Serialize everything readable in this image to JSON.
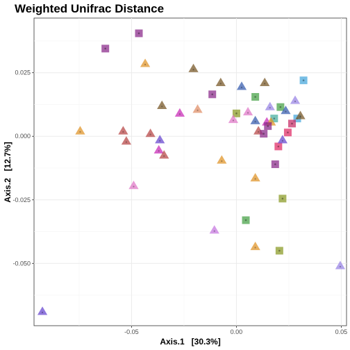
{
  "chart_data": {
    "type": "scatter",
    "title": "Weighted Unifrac Distance",
    "xlabel": "Axis.1   [30.3%]",
    "ylabel": "Axis.2   [12.7%]",
    "xlim": [
      -0.0965,
      0.0525
    ],
    "ylim": [
      -0.0745,
      0.0465
    ],
    "x_ticks": [
      -0.05,
      0.0,
      0.05
    ],
    "x_tick_labels": [
      "-0.05",
      "0.00",
      "0.05"
    ],
    "y_ticks": [
      -0.05,
      -0.025,
      0.0,
      0.025
    ],
    "y_tick_labels": [
      "-0.050",
      "-0.025",
      "0.000",
      "0.025"
    ],
    "grid": true,
    "legend": "none",
    "marker_shapes": [
      "triangle",
      "square"
    ],
    "points": [
      {
        "x": -0.0625,
        "y": 0.0345,
        "shape": "square",
        "color": "#8c2d8c"
      },
      {
        "x": -0.0465,
        "y": 0.0405,
        "shape": "square",
        "color": "#8c2d8c"
      },
      {
        "x": -0.0435,
        "y": 0.0285,
        "shape": "triangle",
        "color": "#e0952b"
      },
      {
        "x": -0.0205,
        "y": 0.0265,
        "shape": "triangle",
        "color": "#7a5a2a"
      },
      {
        "x": -0.0075,
        "y": 0.021,
        "shape": "triangle",
        "color": "#7a5a2a"
      },
      {
        "x": -0.0115,
        "y": 0.0165,
        "shape": "square",
        "color": "#8c2d8c"
      },
      {
        "x": 0.0025,
        "y": 0.0195,
        "shape": "triangle",
        "color": "#3a5fb0"
      },
      {
        "x": 0.009,
        "y": 0.0155,
        "shape": "square",
        "color": "#4aa34a"
      },
      {
        "x": 0.0135,
        "y": 0.021,
        "shape": "triangle",
        "color": "#7a5a2a"
      },
      {
        "x": 0.032,
        "y": 0.022,
        "shape": "square",
        "color": "#4aa8dc"
      },
      {
        "x": -0.0355,
        "y": 0.012,
        "shape": "triangle",
        "color": "#7a5a2a"
      },
      {
        "x": -0.0185,
        "y": 0.0105,
        "shape": "triangle",
        "color": "#e0906a"
      },
      {
        "x": -0.027,
        "y": 0.009,
        "shape": "triangle",
        "color": "#c92fb8"
      },
      {
        "x": 0.0,
        "y": 0.009,
        "shape": "square",
        "color": "#8c9c2a"
      },
      {
        "x": 0.0055,
        "y": 0.0095,
        "shape": "triangle",
        "color": "#e07ac8"
      },
      {
        "x": 0.016,
        "y": 0.0115,
        "shape": "triangle",
        "color": "#9a86e6"
      },
      {
        "x": 0.021,
        "y": 0.0115,
        "shape": "square",
        "color": "#4aa34a"
      },
      {
        "x": 0.028,
        "y": 0.014,
        "shape": "triangle",
        "color": "#9a86e6"
      },
      {
        "x": 0.0235,
        "y": 0.01,
        "shape": "triangle",
        "color": "#3a5fb0"
      },
      {
        "x": -0.0015,
        "y": 0.0065,
        "shape": "triangle",
        "color": "#e07ac8"
      },
      {
        "x": 0.009,
        "y": 0.006,
        "shape": "triangle",
        "color": "#3a5fb0"
      },
      {
        "x": 0.0145,
        "y": 0.0055,
        "shape": "triangle",
        "color": "#c92fb8"
      },
      {
        "x": 0.018,
        "y": 0.007,
        "shape": "square",
        "color": "#4ab0a0"
      },
      {
        "x": 0.0165,
        "y": 0.0055,
        "shape": "triangle",
        "color": "#e0952b"
      },
      {
        "x": 0.029,
        "y": 0.007,
        "shape": "square",
        "color": "#4aa8dc"
      },
      {
        "x": 0.0305,
        "y": 0.008,
        "shape": "triangle",
        "color": "#7a5a2a"
      },
      {
        "x": 0.0265,
        "y": 0.005,
        "shape": "square",
        "color": "#c8306a"
      },
      {
        "x": 0.015,
        "y": 0.004,
        "shape": "square",
        "color": "#8c2d8c"
      },
      {
        "x": 0.0105,
        "y": 0.002,
        "shape": "triangle",
        "color": "#b84a4a"
      },
      {
        "x": 0.013,
        "y": 0.001,
        "shape": "square",
        "color": "#8c2d8c"
      },
      {
        "x": 0.0245,
        "y": 0.0015,
        "shape": "square",
        "color": "#e0306a"
      },
      {
        "x": -0.0745,
        "y": 0.002,
        "shape": "triangle",
        "color": "#e0952b"
      },
      {
        "x": -0.054,
        "y": 0.002,
        "shape": "triangle",
        "color": "#b84a4a"
      },
      {
        "x": -0.041,
        "y": 0.001,
        "shape": "triangle",
        "color": "#b84a4a"
      },
      {
        "x": -0.0525,
        "y": -0.002,
        "shape": "triangle",
        "color": "#b84a4a"
      },
      {
        "x": -0.0365,
        "y": -0.0015,
        "shape": "triangle",
        "color": "#6a4ad0"
      },
      {
        "x": -0.037,
        "y": -0.0055,
        "shape": "triangle",
        "color": "#c92fb8"
      },
      {
        "x": -0.0345,
        "y": -0.0075,
        "shape": "triangle",
        "color": "#b84a4a"
      },
      {
        "x": 0.02,
        "y": -0.004,
        "shape": "square",
        "color": "#e0306a"
      },
      {
        "x": 0.022,
        "y": -0.0015,
        "shape": "triangle",
        "color": "#6a4ad0"
      },
      {
        "x": -0.007,
        "y": -0.0095,
        "shape": "triangle",
        "color": "#e0952b"
      },
      {
        "x": 0.0185,
        "y": -0.011,
        "shape": "square",
        "color": "#8c2d8c"
      },
      {
        "x": -0.049,
        "y": -0.0195,
        "shape": "triangle",
        "color": "#e07ac8"
      },
      {
        "x": 0.009,
        "y": -0.0165,
        "shape": "triangle",
        "color": "#e0952b"
      },
      {
        "x": 0.022,
        "y": -0.0245,
        "shape": "square",
        "color": "#8c9c2a"
      },
      {
        "x": 0.0045,
        "y": -0.033,
        "shape": "square",
        "color": "#4aa34a"
      },
      {
        "x": -0.0105,
        "y": -0.037,
        "shape": "triangle",
        "color": "#c77ae0"
      },
      {
        "x": 0.009,
        "y": -0.0435,
        "shape": "triangle",
        "color": "#e0952b"
      },
      {
        "x": 0.0205,
        "y": -0.045,
        "shape": "square",
        "color": "#8c9c2a"
      },
      {
        "x": 0.0495,
        "y": -0.051,
        "shape": "triangle",
        "color": "#9a86e6"
      },
      {
        "x": -0.0925,
        "y": -0.069,
        "shape": "triangle",
        "color": "#6a4ad0"
      }
    ]
  }
}
